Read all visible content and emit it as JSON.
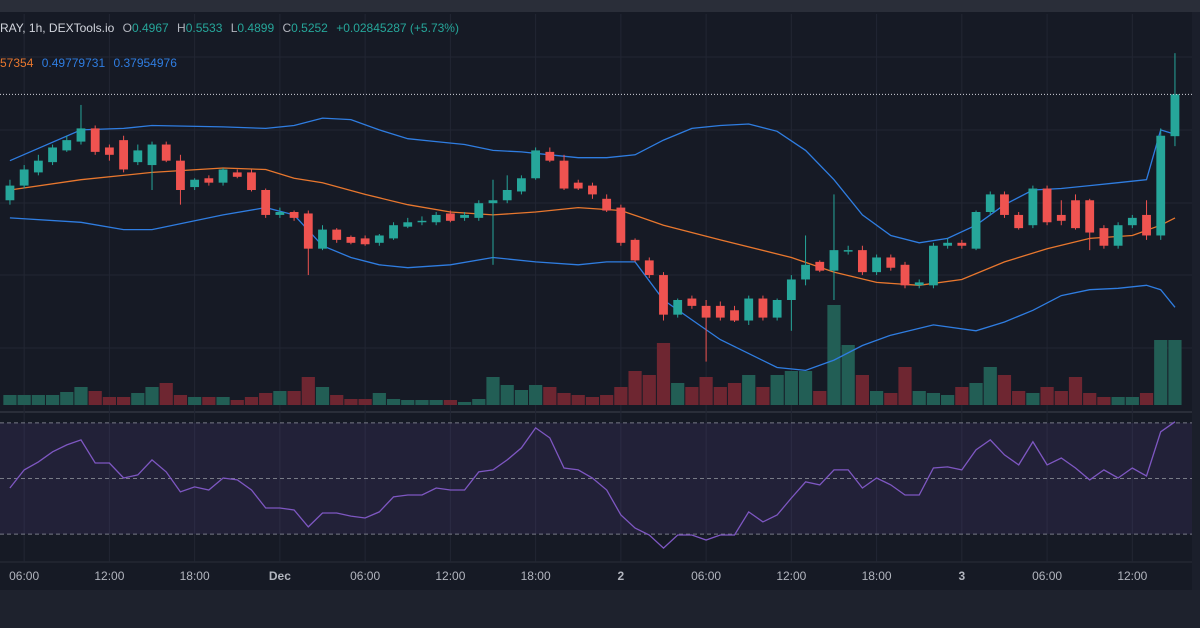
{
  "header": {
    "symbol": "RAY, 1h, DEXTools.io",
    "ohlc_labels": [
      "O",
      "H",
      "L",
      "C"
    ],
    "change": "+0.02845287 (+5.73%)",
    "band_labels": [
      "57354",
      0.49779731,
      0.37954976
    ]
  },
  "chart_data": {
    "type": "candlestick",
    "up_color": "#26a69a",
    "down_color": "#ef5350",
    "volume_up_color": "#225e55",
    "volume_down_color": "#6e2631",
    "ylim": [
      0.31,
      0.58
    ],
    "xlim": [
      -0.7,
      83.2
    ],
    "xticks": [
      {
        "value": 1,
        "label": "06:00"
      },
      {
        "value": 7,
        "label": "12:00"
      },
      {
        "value": 13,
        "label": "18:00"
      },
      {
        "value": 19,
        "label": "Dec"
      },
      {
        "value": 25,
        "label": "06:00"
      },
      {
        "value": 31,
        "label": "12:00"
      },
      {
        "value": 37,
        "label": "18:00"
      },
      {
        "value": 43,
        "label": "2"
      },
      {
        "value": 49,
        "label": "06:00"
      },
      {
        "value": 55,
        "label": "12:00"
      },
      {
        "value": 61,
        "label": "18:00"
      },
      {
        "value": 67,
        "label": "3"
      },
      {
        "value": 73,
        "label": "06:00"
      },
      {
        "value": 79,
        "label": "12:00"
      }
    ],
    "open": [
      0.453,
      0.463,
      0.472,
      0.479,
      0.487,
      0.493,
      0.502,
      0.489,
      0.494,
      0.479,
      0.477,
      0.491,
      0.48,
      0.462,
      0.468,
      0.465,
      0.472,
      0.472,
      0.46,
      0.443,
      0.445,
      0.444,
      0.42,
      0.433,
      0.428,
      0.427,
      0.424,
      0.427,
      0.435,
      0.438,
      0.438,
      0.444,
      0.441,
      0.441,
      0.451,
      0.453,
      0.459,
      0.468,
      0.486,
      0.48,
      0.465,
      0.463,
      0.454,
      0.448,
      0.426,
      0.412,
      0.402,
      0.375,
      0.386,
      0.381,
      0.381,
      0.378,
      0.371,
      0.386,
      0.373,
      0.385,
      0.399,
      0.411,
      0.405,
      0.418,
      0.419,
      0.404,
      0.414,
      0.409,
      0.395,
      0.395,
      0.422,
      0.424,
      0.42,
      0.445,
      0.457,
      0.443,
      0.436,
      0.461,
      0.443,
      0.453,
      0.453,
      0.434,
      0.422,
      0.436,
      0.443,
      0.429,
      0.4967
    ],
    "high": [
      0.467,
      0.477,
      0.484,
      0.491,
      0.497,
      0.518,
      0.504,
      0.491,
      0.497,
      0.491,
      0.493,
      0.493,
      0.484,
      0.468,
      0.47,
      0.475,
      0.474,
      0.474,
      0.461,
      0.448,
      0.446,
      0.446,
      0.436,
      0.434,
      0.429,
      0.429,
      0.43,
      0.438,
      0.441,
      0.442,
      0.445,
      0.446,
      0.445,
      0.453,
      0.467,
      0.47,
      0.47,
      0.489,
      0.489,
      0.484,
      0.467,
      0.465,
      0.457,
      0.45,
      0.427,
      0.414,
      0.404,
      0.386,
      0.388,
      0.385,
      0.384,
      0.381,
      0.388,
      0.388,
      0.386,
      0.402,
      0.429,
      0.412,
      0.457,
      0.422,
      0.422,
      0.416,
      0.416,
      0.411,
      0.399,
      0.424,
      0.427,
      0.426,
      0.446,
      0.459,
      0.459,
      0.445,
      0.463,
      0.463,
      0.453,
      0.457,
      0.454,
      0.436,
      0.438,
      0.443,
      0.453,
      0.502,
      0.5533
    ],
    "low": [
      0.45,
      0.461,
      0.47,
      0.477,
      0.486,
      0.491,
      0.484,
      0.48,
      0.472,
      0.477,
      0.46,
      0.479,
      0.45,
      0.46,
      0.463,
      0.463,
      0.468,
      0.459,
      0.441,
      0.441,
      0.439,
      0.402,
      0.419,
      0.424,
      0.423,
      0.422,
      0.422,
      0.426,
      0.434,
      0.436,
      0.436,
      0.438,
      0.439,
      0.439,
      0.409,
      0.451,
      0.457,
      0.467,
      0.479,
      0.46,
      0.46,
      0.454,
      0.445,
      0.422,
      0.411,
      0.4,
      0.371,
      0.373,
      0.379,
      0.343,
      0.371,
      0.37,
      0.368,
      0.371,
      0.371,
      0.364,
      0.395,
      0.404,
      0.385,
      0.416,
      0.402,
      0.402,
      0.405,
      0.393,
      0.393,
      0.393,
      0.42,
      0.42,
      0.419,
      0.443,
      0.441,
      0.433,
      0.434,
      0.436,
      0.436,
      0.433,
      0.419,
      0.42,
      0.42,
      0.434,
      0.426,
      0.426,
      0.4899
    ],
    "close": [
      0.463,
      0.474,
      0.48,
      0.489,
      0.494,
      0.502,
      0.486,
      0.484,
      0.474,
      0.487,
      0.491,
      0.48,
      0.46,
      0.467,
      0.465,
      0.474,
      0.469,
      0.46,
      0.443,
      0.445,
      0.441,
      0.42,
      0.433,
      0.426,
      0.424,
      0.423,
      0.429,
      0.436,
      0.438,
      0.439,
      0.443,
      0.439,
      0.443,
      0.451,
      0.453,
      0.46,
      0.468,
      0.487,
      0.48,
      0.461,
      0.461,
      0.457,
      0.446,
      0.424,
      0.412,
      0.402,
      0.375,
      0.385,
      0.381,
      0.373,
      0.373,
      0.371,
      0.386,
      0.373,
      0.385,
      0.399,
      0.409,
      0.405,
      0.419,
      0.419,
      0.404,
      0.414,
      0.407,
      0.395,
      0.397,
      0.422,
      0.424,
      0.422,
      0.445,
      0.457,
      0.443,
      0.434,
      0.461,
      0.438,
      0.439,
      0.434,
      0.431,
      0.422,
      0.436,
      0.441,
      0.429,
      0.497,
      0.5252
    ],
    "volume_lim": [
      0,
      110
    ],
    "volume": [
      10,
      10,
      10,
      10,
      13,
      18,
      14,
      8,
      8,
      12,
      18,
      22,
      10,
      8,
      8,
      8,
      5,
      8,
      12,
      14,
      14,
      28,
      18,
      10,
      6,
      6,
      12,
      6,
      5,
      5,
      5,
      5,
      3,
      6,
      28,
      20,
      15,
      20,
      18,
      12,
      10,
      8,
      10,
      18,
      34,
      30,
      62,
      22,
      18,
      28,
      18,
      22,
      30,
      18,
      30,
      34,
      34,
      14,
      100,
      60,
      30,
      14,
      12,
      38,
      14,
      12,
      10,
      18,
      22,
      38,
      30,
      14,
      12,
      18,
      14,
      28,
      12,
      8,
      8,
      8,
      12,
      65,
      65
    ],
    "rsi_lim": [
      20,
      75
    ],
    "rsi_levels": [
      70,
      50,
      30
    ],
    "rsi_color": "#7e57c2",
    "rsi": [
      46.6,
      53.1,
      56.0,
      59.6,
      62.1,
      63.9,
      55.6,
      55.6,
      50.2,
      51.3,
      56.7,
      52.4,
      45.2,
      47.0,
      45.9,
      50.2,
      49.5,
      45.9,
      39.4,
      39.4,
      38.7,
      32.6,
      37.6,
      37.6,
      36.5,
      35.8,
      38.0,
      43.4,
      44.1,
      44.1,
      46.6,
      45.9,
      45.9,
      52.4,
      53.1,
      56.7,
      61.0,
      68.2,
      64.6,
      53.8,
      53.1,
      50.2,
      45.9,
      36.9,
      32.2,
      29.7,
      25.0,
      29.7,
      29.7,
      27.9,
      29.7,
      29.7,
      38.0,
      34.4,
      36.9,
      43.0,
      48.8,
      47.7,
      53.1,
      53.1,
      46.6,
      50.2,
      47.7,
      44.1,
      44.1,
      53.8,
      54.2,
      53.1,
      60.3,
      63.9,
      58.5,
      54.9,
      63.2,
      54.9,
      57.4,
      53.8,
      49.5,
      53.1,
      50.2,
      53.8,
      50.9,
      66.8,
      70.4
    ],
    "bands": [
      {
        "color": "#2f7de1",
        "x": [
          0,
          5,
          8,
          10,
          15,
          18,
          20,
          22,
          24,
          26,
          28,
          30,
          32,
          34,
          36,
          38,
          40,
          42,
          44,
          46,
          48,
          50,
          52,
          54,
          56,
          58,
          60,
          62,
          64,
          66,
          68,
          70,
          72,
          74,
          76,
          78,
          80,
          81,
          82
        ],
        "values": [
          0.48,
          0.501,
          0.502,
          0.504,
          0.503,
          0.502,
          0.504,
          0.509,
          0.508,
          0.501,
          0.495,
          0.493,
          0.491,
          0.487,
          0.486,
          0.484,
          0.482,
          0.482,
          0.484,
          0.494,
          0.502,
          0.504,
          0.505,
          0.5,
          0.487,
          0.467,
          0.443,
          0.429,
          0.424,
          0.427,
          0.436,
          0.45,
          0.46,
          0.461,
          0.463,
          0.465,
          0.467,
          0.501,
          0.498
        ]
      },
      {
        "color": "#e8772e",
        "x": [
          0,
          5,
          10,
          15,
          18,
          20,
          22,
          25,
          28,
          31,
          34,
          37,
          40,
          43,
          46,
          50,
          55,
          58,
          61,
          64,
          67,
          70,
          73,
          76,
          79,
          81,
          82
        ],
        "values": [
          0.46,
          0.467,
          0.472,
          0.475,
          0.474,
          0.468,
          0.465,
          0.457,
          0.45,
          0.445,
          0.443,
          0.445,
          0.448,
          0.446,
          0.436,
          0.426,
          0.414,
          0.404,
          0.397,
          0.395,
          0.399,
          0.411,
          0.42,
          0.427,
          0.429,
          0.436,
          0.441
        ]
      },
      {
        "color": "#2f7de1",
        "x": [
          0,
          5,
          8,
          10,
          15,
          18,
          20,
          22,
          24,
          26,
          28,
          31,
          34,
          37,
          40,
          42,
          44,
          46,
          50,
          54,
          56,
          58,
          60,
          62,
          65,
          68,
          70,
          72,
          74,
          76,
          78,
          80,
          81,
          82
        ],
        "values": [
          0.441,
          0.438,
          0.433,
          0.433,
          0.443,
          0.448,
          0.443,
          0.422,
          0.414,
          0.409,
          0.407,
          0.409,
          0.414,
          0.411,
          0.409,
          0.411,
          0.411,
          0.385,
          0.358,
          0.339,
          0.337,
          0.344,
          0.354,
          0.361,
          0.368,
          0.364,
          0.37,
          0.378,
          0.388,
          0.392,
          0.393,
          0.395,
          0.392,
          0.38
        ]
      }
    ]
  }
}
